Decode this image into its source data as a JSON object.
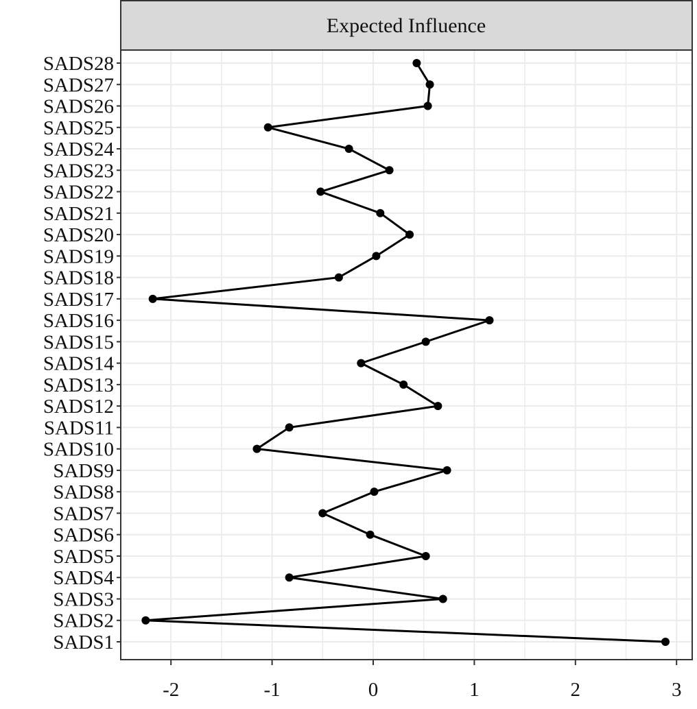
{
  "chart_data": {
    "type": "line",
    "title": "Expected Influence",
    "xlabel": "",
    "ylabel": "",
    "xlim": [
      -2.45,
      3.1
    ],
    "xticks": [
      -2,
      -1,
      0,
      1,
      2,
      3
    ],
    "grid": true,
    "orientation": "horizontal values, categorical y",
    "categories": [
      "SADS1",
      "SADS2",
      "SADS3",
      "SADS4",
      "SADS5",
      "SADS6",
      "SADS7",
      "SADS8",
      "SADS9",
      "SADS10",
      "SADS11",
      "SADS12",
      "SADS13",
      "SADS14",
      "SADS15",
      "SADS16",
      "SADS17",
      "SADS18",
      "SADS19",
      "SADS20",
      "SADS21",
      "SADS22",
      "SADS23",
      "SADS24",
      "SADS25",
      "SADS26",
      "SADS27",
      "SADS28"
    ],
    "values": [
      2.89,
      -2.25,
      0.69,
      -0.83,
      0.52,
      -0.03,
      -0.5,
      0.01,
      0.73,
      -1.15,
      -0.83,
      0.64,
      0.3,
      -0.12,
      0.52,
      1.15,
      -2.18,
      -0.34,
      0.03,
      0.36,
      0.07,
      -0.52,
      0.16,
      -0.24,
      -1.04,
      0.54,
      0.56,
      0.43
    ],
    "colors": {
      "line": "#000000",
      "strip": "#d9d9d9",
      "grid": "#ebebeb"
    }
  }
}
